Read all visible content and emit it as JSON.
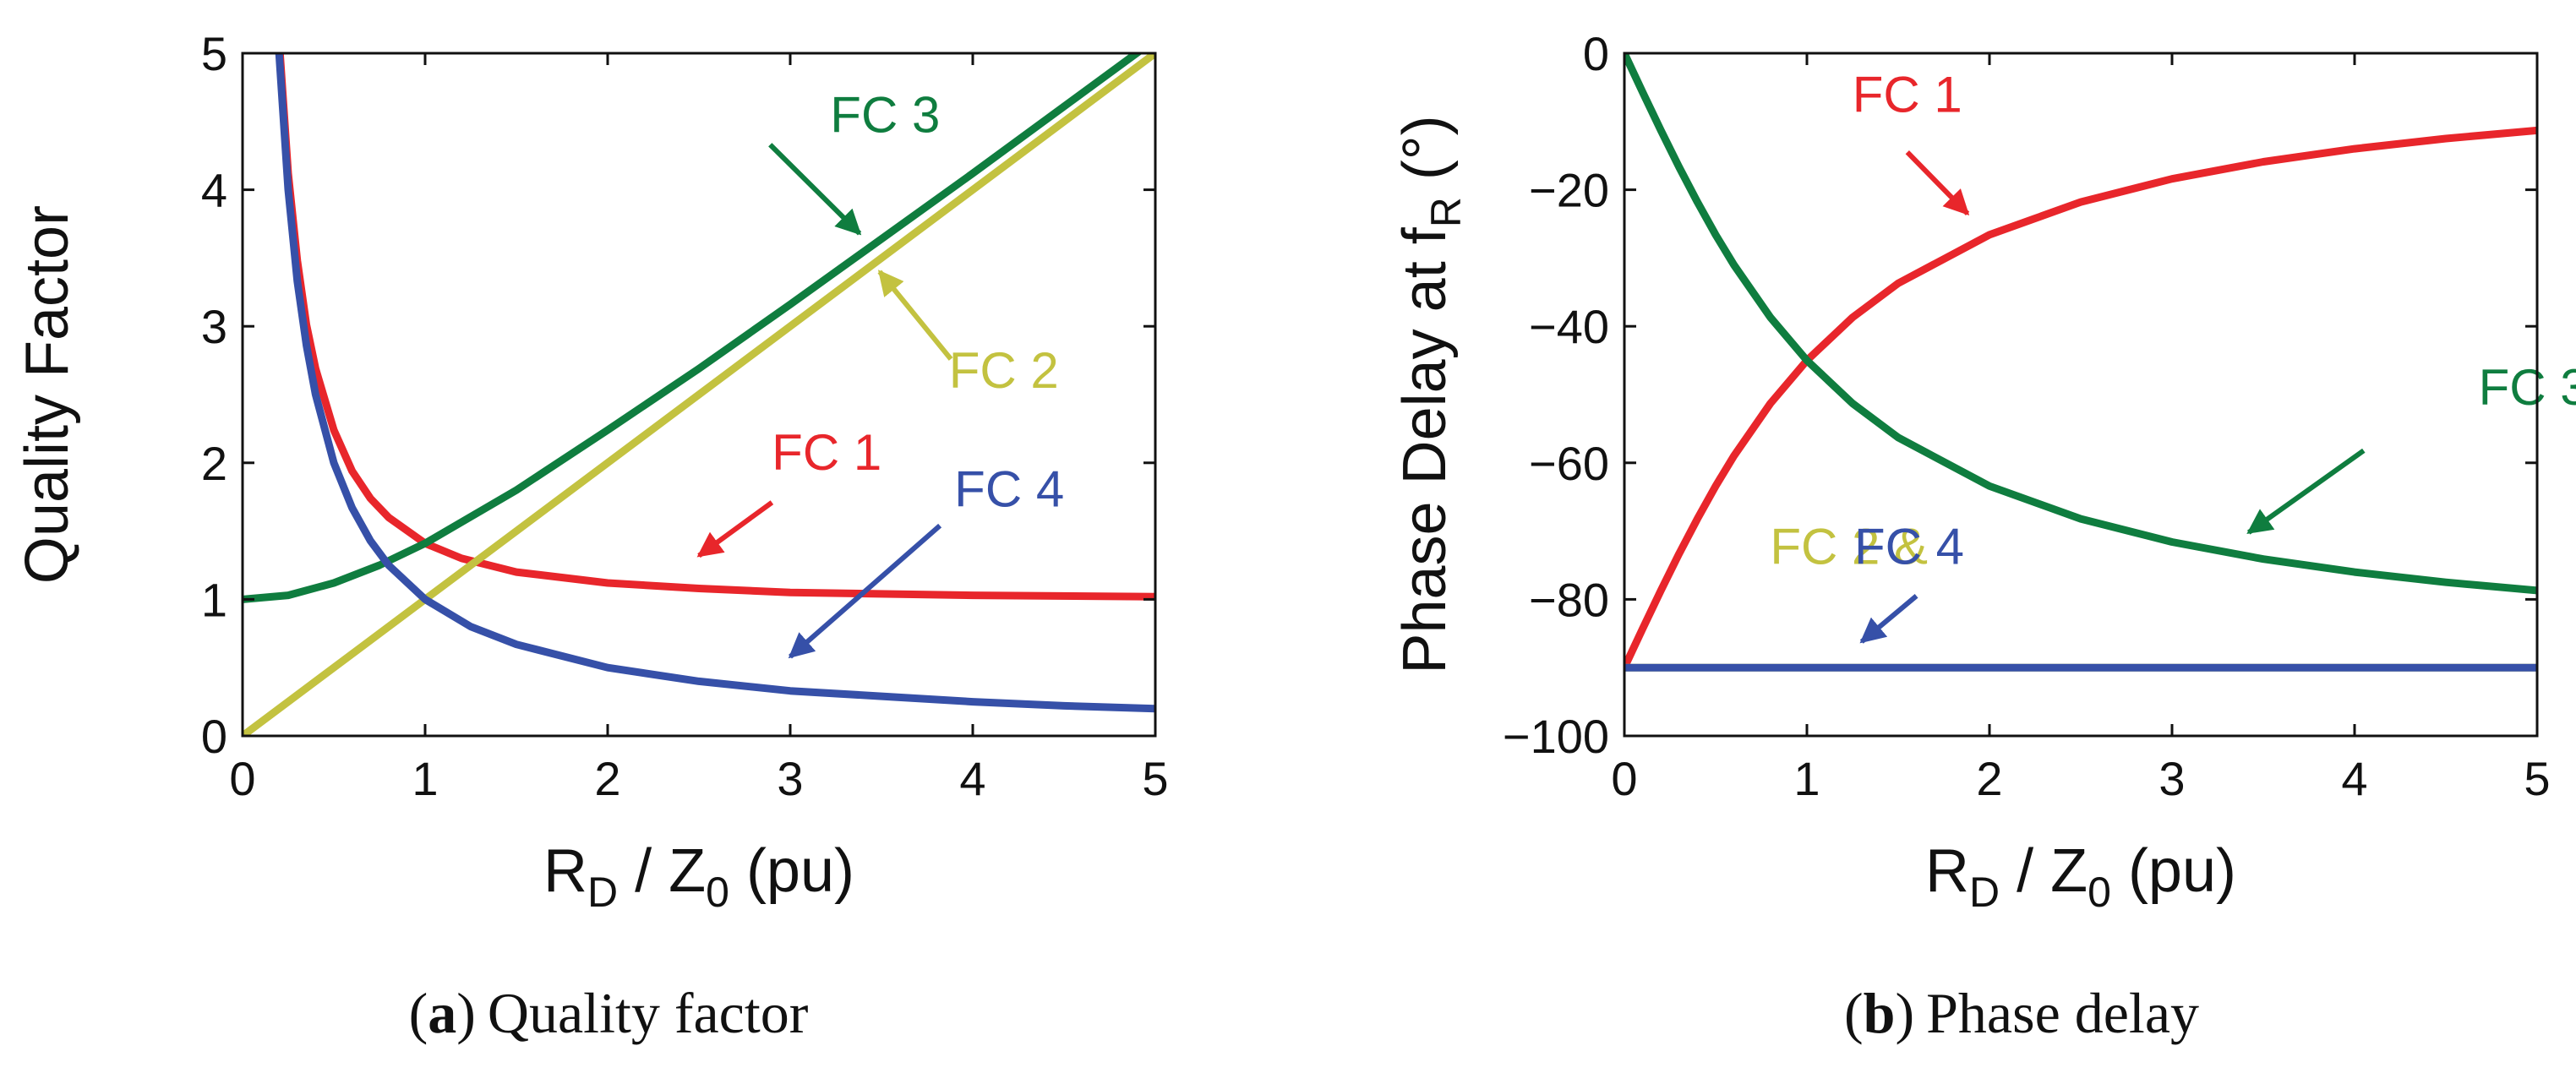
{
  "colors": {
    "fc1": "#e8262b",
    "fc2": "#c3c240",
    "fc3": "#0f7d3f",
    "fc4": "#3650a8",
    "axis": "#111111"
  },
  "chart_data": [
    {
      "id": "a",
      "type": "line",
      "caption_letter": "a",
      "caption_text": "Quality factor",
      "caption_open": "(",
      "caption_close": ")",
      "xlabel_main": "R",
      "xlabel_sub1": "D",
      "xlabel_mid": " / Z",
      "xlabel_sub2": "0",
      "xlabel_end": " (pu)",
      "ylabel": "Quality Factor",
      "xlim": [
        0,
        5
      ],
      "ylim": [
        0,
        5
      ],
      "xticks": [
        0,
        1,
        2,
        3,
        4,
        5
      ],
      "yticks": [
        0,
        1,
        2,
        3,
        4,
        5
      ],
      "grid": false,
      "series": [
        {
          "name": "FC 1",
          "color_key": "fc1",
          "x": [
            0.2,
            0.25,
            0.3,
            0.35,
            0.4,
            0.5,
            0.6,
            0.7,
            0.8,
            1.0,
            1.2,
            1.5,
            2.0,
            2.5,
            3.0,
            4.0,
            5.0
          ],
          "y": [
            5.1,
            4.12,
            3.48,
            3.01,
            2.69,
            2.24,
            1.94,
            1.74,
            1.6,
            1.41,
            1.3,
            1.2,
            1.12,
            1.08,
            1.05,
            1.03,
            1.02
          ]
        },
        {
          "name": "FC 2",
          "color_key": "fc2",
          "x": [
            0,
            5
          ],
          "y": [
            0,
            5
          ]
        },
        {
          "name": "FC 3",
          "color_key": "fc3",
          "x": [
            0,
            0.25,
            0.5,
            0.75,
            1.0,
            1.5,
            2.0,
            2.5,
            3.0,
            3.5,
            4.0,
            4.5,
            5.0
          ],
          "y": [
            1.0,
            1.03,
            1.12,
            1.25,
            1.41,
            1.8,
            2.24,
            2.69,
            3.16,
            3.64,
            4.12,
            4.61,
            5.1
          ]
        },
        {
          "name": "FC 4",
          "color_key": "fc4",
          "x": [
            0.2,
            0.25,
            0.3,
            0.35,
            0.4,
            0.5,
            0.6,
            0.7,
            0.8,
            1.0,
            1.25,
            1.5,
            2.0,
            2.5,
            3.0,
            3.5,
            4.0,
            4.5,
            5.0
          ],
          "y": [
            5.0,
            4.0,
            3.33,
            2.86,
            2.5,
            2.0,
            1.67,
            1.43,
            1.25,
            1.0,
            0.8,
            0.67,
            0.5,
            0.4,
            0.33,
            0.29,
            0.25,
            0.22,
            0.2
          ]
        }
      ],
      "annotations": [
        {
          "text": "FC 3",
          "color_key": "fc3",
          "tx": 3.52,
          "ty": 4.42,
          "fx": 2.89,
          "fy": 4.33,
          "ax": 3.38,
          "ay": 3.68
        },
        {
          "text": "FC 2",
          "color_key": "fc2",
          "tx": 4.17,
          "ty": 2.55,
          "fx": 3.88,
          "fy": 2.76,
          "ax": 3.49,
          "ay": 3.4
        },
        {
          "text": "FC 1",
          "color_key": "fc1",
          "tx": 3.2,
          "ty": 1.95,
          "fx": 2.9,
          "fy": 1.71,
          "ax": 2.5,
          "ay": 1.32
        },
        {
          "text": "FC 4",
          "color_key": "fc4",
          "tx": 4.2,
          "ty": 1.68,
          "fx": 3.82,
          "fy": 1.54,
          "ax": 3.0,
          "ay": 0.58
        }
      ]
    },
    {
      "id": "b",
      "type": "line",
      "caption_letter": "b",
      "caption_text": "Phase delay",
      "caption_open": "(",
      "caption_close": ")",
      "xlabel_main": "R",
      "xlabel_sub1": "D",
      "xlabel_mid": " / Z",
      "xlabel_sub2": "0",
      "xlabel_end": " (pu)",
      "ylabel_main": "Phase Delay at f",
      "ylabel_sub": "R",
      "ylabel_unit": " (°)",
      "xlim": [
        0,
        5
      ],
      "ylim": [
        -100,
        0
      ],
      "xticks": [
        0,
        1,
        2,
        3,
        4,
        5
      ],
      "yticks": [
        0,
        -20,
        -40,
        -60,
        -80,
        -100
      ],
      "ytick_labels": [
        "0",
        "−20",
        "−40",
        "−60",
        "−80",
        "−100"
      ],
      "grid": false,
      "series": [
        {
          "name": "FC 1",
          "color_key": "fc1",
          "x": [
            0,
            0.1,
            0.2,
            0.3,
            0.4,
            0.5,
            0.6,
            0.8,
            1.0,
            1.25,
            1.5,
            2.0,
            2.5,
            3.0,
            3.5,
            4.0,
            4.5,
            5.0
          ],
          "y": [
            -90,
            -84.3,
            -78.7,
            -73.3,
            -68.2,
            -63.4,
            -59.0,
            -51.3,
            -45.0,
            -38.7,
            -33.7,
            -26.6,
            -21.8,
            -18.4,
            -15.9,
            -14.0,
            -12.5,
            -11.3
          ]
        },
        {
          "name": "FC 2",
          "color_key": "fc2",
          "x": [
            0,
            5
          ],
          "y": [
            -90,
            -90
          ]
        },
        {
          "name": "FC 3",
          "color_key": "fc3",
          "x": [
            0,
            0.1,
            0.2,
            0.3,
            0.4,
            0.5,
            0.6,
            0.8,
            1.0,
            1.25,
            1.5,
            2.0,
            2.5,
            3.0,
            3.5,
            4.0,
            4.5,
            5.0
          ],
          "y": [
            0,
            -5.7,
            -11.3,
            -16.7,
            -21.8,
            -26.6,
            -31.0,
            -38.7,
            -45.0,
            -51.3,
            -56.3,
            -63.4,
            -68.2,
            -71.6,
            -74.1,
            -76.0,
            -77.5,
            -78.7
          ]
        },
        {
          "name": "FC 4",
          "color_key": "fc4",
          "x": [
            0,
            5
          ],
          "y": [
            -90,
            -90
          ]
        }
      ],
      "annotations": [
        {
          "text": "FC 1",
          "color_key": "fc1",
          "tx": 1.55,
          "ty": -8.6,
          "fx": 1.55,
          "fy": -14.5,
          "ax": 1.88,
          "ay": -23.5
        },
        {
          "text": "FC 3",
          "color_key": "fc3",
          "tx": 4.98,
          "ty": -51.5,
          "fx": 4.05,
          "fy": -58.2,
          "ax": 3.42,
          "ay": -70.2
        },
        {
          "text": "FC 2 &",
          "color_key": "fc2",
          "tx": 1.23,
          "ty": -74.8,
          "noarrow": true
        },
        {
          "text": "FC 4",
          "color_key": "fc4",
          "tx": 1.56,
          "ty": -74.8,
          "fx": 1.6,
          "fy": -79.5,
          "ax": 1.3,
          "ay": -86.2
        }
      ]
    }
  ]
}
